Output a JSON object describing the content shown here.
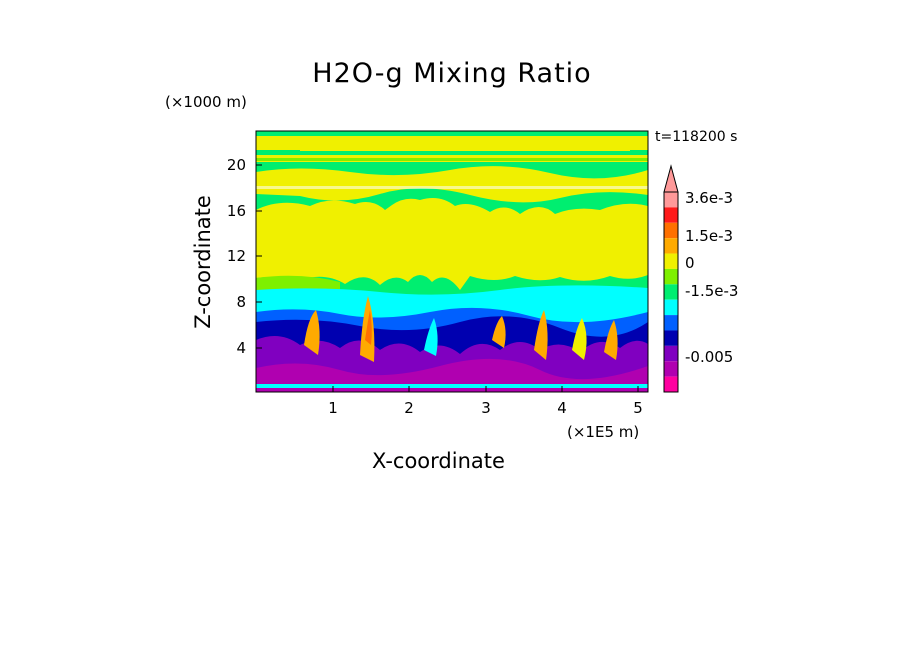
{
  "chart_data": {
    "type": "heatmap",
    "title": "H2O-g Mixing Ratio",
    "xlabel": "X-coordinate",
    "ylabel": "Z-coordinate",
    "x_unit": "(×1E5 m)",
    "y_unit": "(×1000 m)",
    "time_label": "t=118200 s",
    "xlim": [
      0,
      5.1
    ],
    "ylim": [
      0,
      22.8
    ],
    "x_ticks": [
      "1",
      "2",
      "3",
      "4",
      "5"
    ],
    "y_ticks": [
      "4",
      "8",
      "12",
      "16",
      "20"
    ],
    "colorbar": {
      "labels": [
        "3.6e-3",
        "1.5e-3",
        "0",
        "-1.5e-3",
        "-0.005"
      ],
      "colors": [
        "#ff9999",
        "#ff1a1a",
        "#ff7000",
        "#ffaa00",
        "#f0f000",
        "#7ef000",
        "#00ee70",
        "#00ffff",
        "#0060ff",
        "#0000b0",
        "#8000c0",
        "#b000b0",
        "#ff00a0"
      ]
    },
    "layers": [
      {
        "z_range": [
          0,
          1
        ],
        "value": "-0.005",
        "color": "#8000c0"
      },
      {
        "z_range": [
          1,
          5
        ],
        "value": "-0.005",
        "color": "#8000c0"
      },
      {
        "z_range": [
          5,
          7
        ],
        "value": "-1.5e-3",
        "color": "#0000b0"
      },
      {
        "z_range": [
          7,
          9
        ],
        "value": "-1.5e-3",
        "color": "#00ffff"
      },
      {
        "z_range": [
          9,
          18
        ],
        "value": "0",
        "color": "#f0f000"
      },
      {
        "z_range": [
          18,
          22.8
        ],
        "value": "0",
        "color": "#00ee70"
      }
    ]
  }
}
